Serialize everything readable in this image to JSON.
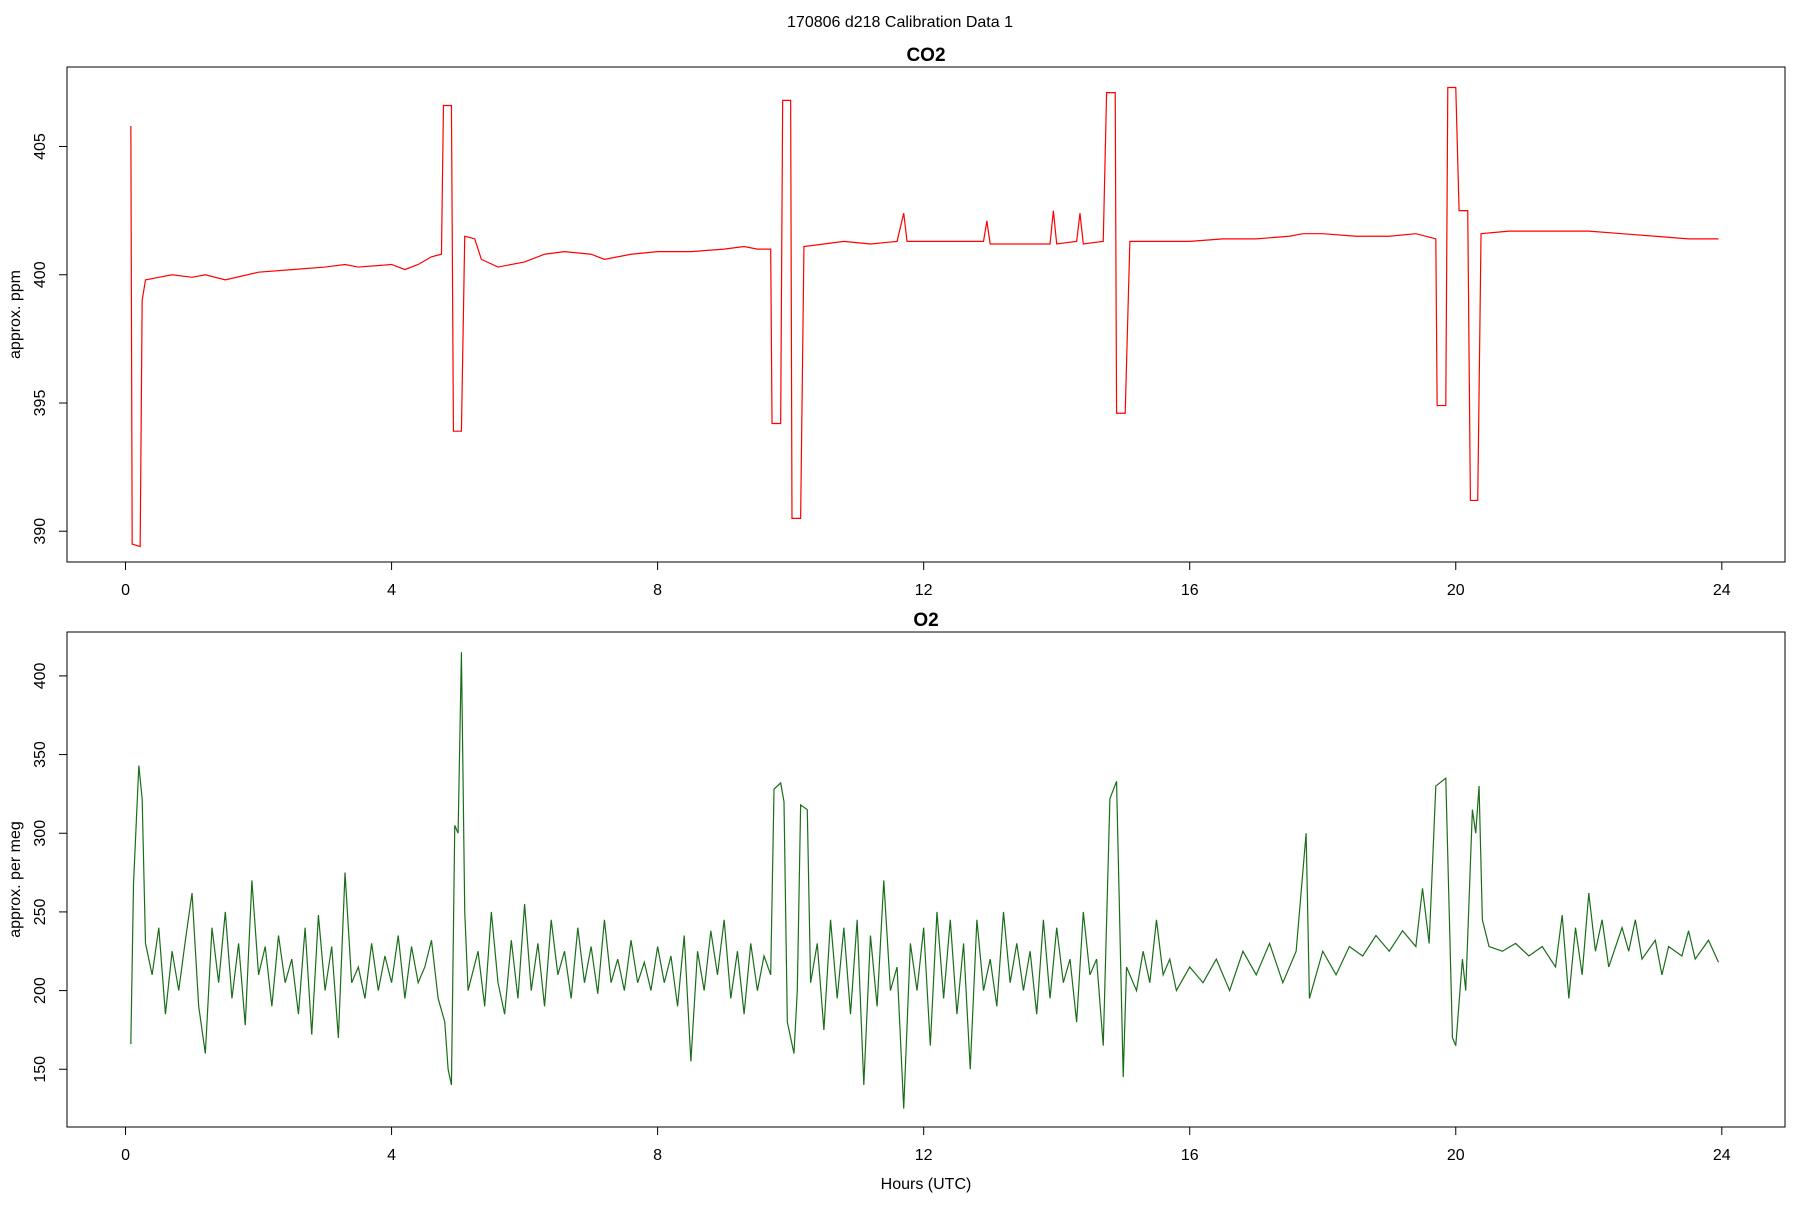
{
  "title": "170806   d218   Calibration Data 1",
  "chart_data": [
    {
      "type": "line",
      "title": "CO2",
      "y_label": "approx. ppm",
      "xlim": [
        -0.88,
        24.95
      ],
      "xticks": [
        0,
        4,
        8,
        12,
        16,
        20,
        24
      ],
      "ylim": [
        388.8,
        408.1
      ],
      "yticks": [
        390,
        395,
        400,
        405
      ],
      "x": [
        0.08,
        0.1,
        0.22,
        0.25,
        0.3,
        0.5,
        0.7,
        1.0,
        1.2,
        1.5,
        2.0,
        2.5,
        3.0,
        3.3,
        3.5,
        4.0,
        4.2,
        4.4,
        4.6,
        4.75,
        4.78,
        4.9,
        4.93,
        5.05,
        5.1,
        5.25,
        5.35,
        5.6,
        6.0,
        6.3,
        6.6,
        7.0,
        7.2,
        7.6,
        8.0,
        8.5,
        9.0,
        9.3,
        9.5,
        9.7,
        9.72,
        9.85,
        9.88,
        10.0,
        10.02,
        10.15,
        10.2,
        10.5,
        10.8,
        11.2,
        11.6,
        11.7,
        11.75,
        12.0,
        12.5,
        12.9,
        12.95,
        13.0,
        13.5,
        13.9,
        13.95,
        14.0,
        14.3,
        14.35,
        14.4,
        14.7,
        14.75,
        14.88,
        14.9,
        15.03,
        15.1,
        15.5,
        16.0,
        16.5,
        17.0,
        17.5,
        17.7,
        18.0,
        18.5,
        19.0,
        19.4,
        19.7,
        19.72,
        19.85,
        19.88,
        20.0,
        20.05,
        20.18,
        20.22,
        20.33,
        20.38,
        20.8,
        21.3,
        22.0,
        22.5,
        23.0,
        23.5,
        23.95
      ],
      "series": [
        {
          "color": "#ff0000",
          "values": [
            405.8,
            389.5,
            389.4,
            399,
            399.8,
            399.9,
            400,
            399.9,
            400,
            399.8,
            400.1,
            400.2,
            400.3,
            400.4,
            400.3,
            400.4,
            400.2,
            400.4,
            400.7,
            400.8,
            406.6,
            406.6,
            393.9,
            393.9,
            401.5,
            401.4,
            400.6,
            400.3,
            400.5,
            400.8,
            400.9,
            400.8,
            400.6,
            400.8,
            400.9,
            400.9,
            401.0,
            401.1,
            401.0,
            401.0,
            394.2,
            394.2,
            406.8,
            406.8,
            390.5,
            390.5,
            401.1,
            401.2,
            401.3,
            401.2,
            401.3,
            402.4,
            401.3,
            401.3,
            401.3,
            401.3,
            402.1,
            401.2,
            401.2,
            401.2,
            402.5,
            401.2,
            401.3,
            402.4,
            401.2,
            401.3,
            407.1,
            407.1,
            394.6,
            394.6,
            401.3,
            401.3,
            401.3,
            401.4,
            401.4,
            401.5,
            401.6,
            401.6,
            401.5,
            401.5,
            401.6,
            401.4,
            394.9,
            394.9,
            407.3,
            407.3,
            402.5,
            402.5,
            391.2,
            391.2,
            401.6,
            401.7,
            401.7,
            401.7,
            401.6,
            401.5,
            401.4,
            401.4
          ]
        }
      ]
    },
    {
      "type": "line",
      "title": "O2",
      "y_label": "approx. per meg",
      "x_label": "Hours (UTC)",
      "xlim": [
        -0.88,
        24.95
      ],
      "xticks": [
        0,
        4,
        8,
        12,
        16,
        20,
        24
      ],
      "ylim": [
        113.3,
        427.9
      ],
      "yticks": [
        150,
        200,
        250,
        300,
        350,
        400
      ],
      "x": [
        0.08,
        0.12,
        0.2,
        0.25,
        0.3,
        0.4,
        0.5,
        0.6,
        0.7,
        0.8,
        0.9,
        1.0,
        1.1,
        1.2,
        1.3,
        1.4,
        1.5,
        1.6,
        1.7,
        1.8,
        1.9,
        2.0,
        2.1,
        2.2,
        2.3,
        2.4,
        2.5,
        2.6,
        2.7,
        2.8,
        2.9,
        3.0,
        3.1,
        3.2,
        3.3,
        3.4,
        3.5,
        3.6,
        3.7,
        3.8,
        3.9,
        4.0,
        4.1,
        4.2,
        4.3,
        4.4,
        4.5,
        4.6,
        4.7,
        4.8,
        4.85,
        4.9,
        4.95,
        5.0,
        5.05,
        5.1,
        5.15,
        5.3,
        5.4,
        5.5,
        5.6,
        5.7,
        5.8,
        5.9,
        6.0,
        6.1,
        6.2,
        6.3,
        6.4,
        6.5,
        6.6,
        6.7,
        6.8,
        6.9,
        7.0,
        7.1,
        7.2,
        7.3,
        7.4,
        7.5,
        7.6,
        7.7,
        7.8,
        7.9,
        8.0,
        8.1,
        8.2,
        8.3,
        8.4,
        8.5,
        8.6,
        8.7,
        8.8,
        8.9,
        9.0,
        9.1,
        9.2,
        9.3,
        9.4,
        9.5,
        9.6,
        9.7,
        9.75,
        9.85,
        9.9,
        9.95,
        10.05,
        10.1,
        10.15,
        10.25,
        10.3,
        10.4,
        10.5,
        10.6,
        10.7,
        10.8,
        10.9,
        11.0,
        11.1,
        11.2,
        11.3,
        11.4,
        11.5,
        11.6,
        11.7,
        11.8,
        11.9,
        12.0,
        12.1,
        12.2,
        12.3,
        12.4,
        12.5,
        12.6,
        12.7,
        12.8,
        12.9,
        13.0,
        13.1,
        13.2,
        13.3,
        13.4,
        13.5,
        13.6,
        13.7,
        13.8,
        13.9,
        14.0,
        14.1,
        14.2,
        14.3,
        14.4,
        14.5,
        14.6,
        14.7,
        14.8,
        14.9,
        15.0,
        15.05,
        15.2,
        15.3,
        15.4,
        15.5,
        15.6,
        15.7,
        15.8,
        16.0,
        16.2,
        16.4,
        16.6,
        16.8,
        17.0,
        17.2,
        17.4,
        17.6,
        17.75,
        17.8,
        18.0,
        18.2,
        18.4,
        18.6,
        18.8,
        19.0,
        19.2,
        19.4,
        19.5,
        19.6,
        19.7,
        19.85,
        19.95,
        20.0,
        20.1,
        20.15,
        20.25,
        20.3,
        20.35,
        20.4,
        20.5,
        20.7,
        20.9,
        21.1,
        21.3,
        21.5,
        21.6,
        21.7,
        21.8,
        21.9,
        22.0,
        22.1,
        22.2,
        22.3,
        22.5,
        22.6,
        22.7,
        22.8,
        23.0,
        23.1,
        23.2,
        23.4,
        23.5,
        23.6,
        23.8,
        23.95
      ],
      "series": [
        {
          "color": "#1a6e1a",
          "values": [
            166,
            268,
            343,
            322,
            230,
            210,
            240,
            185,
            225,
            200,
            232,
            262,
            190,
            160,
            240,
            205,
            250,
            195,
            230,
            178,
            270,
            210,
            228,
            190,
            235,
            205,
            220,
            185,
            240,
            172,
            248,
            200,
            228,
            170,
            275,
            205,
            215,
            195,
            230,
            200,
            222,
            205,
            235,
            195,
            228,
            205,
            215,
            232,
            195,
            180,
            150,
            140,
            305,
            300,
            415,
            250,
            200,
            225,
            190,
            250,
            205,
            185,
            232,
            195,
            255,
            200,
            230,
            190,
            245,
            210,
            225,
            195,
            240,
            205,
            228,
            198,
            245,
            205,
            220,
            200,
            232,
            205,
            218,
            200,
            228,
            205,
            222,
            190,
            235,
            155,
            225,
            200,
            238,
            210,
            245,
            195,
            225,
            185,
            230,
            200,
            222,
            210,
            328,
            332,
            320,
            180,
            160,
            200,
            318,
            315,
            205,
            230,
            175,
            245,
            195,
            240,
            185,
            245,
            140,
            235,
            190,
            270,
            200,
            215,
            125,
            230,
            200,
            240,
            165,
            250,
            195,
            245,
            185,
            230,
            150,
            245,
            200,
            220,
            190,
            250,
            205,
            230,
            200,
            225,
            185,
            245,
            195,
            240,
            205,
            220,
            180,
            250,
            210,
            220,
            165,
            322,
            333,
            145,
            215,
            200,
            225,
            205,
            245,
            210,
            220,
            200,
            215,
            205,
            220,
            200,
            225,
            210,
            230,
            205,
            225,
            300,
            195,
            225,
            210,
            228,
            222,
            235,
            225,
            238,
            228,
            265,
            230,
            330,
            335,
            170,
            165,
            220,
            200,
            315,
            300,
            330,
            245,
            228,
            225,
            230,
            222,
            228,
            215,
            248,
            195,
            240,
            210,
            262,
            225,
            245,
            215,
            240,
            225,
            245,
            220,
            232,
            210,
            228,
            222,
            238,
            220,
            232,
            218
          ]
        }
      ]
    }
  ]
}
